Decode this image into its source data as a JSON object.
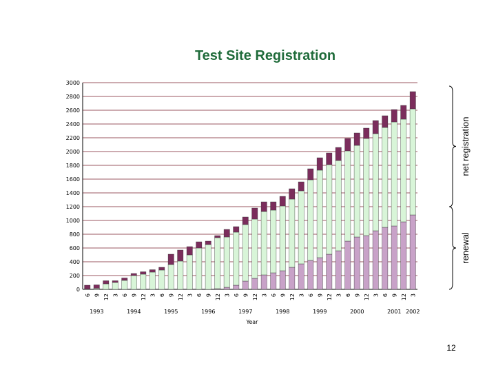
{
  "page": {
    "number": "12"
  },
  "chart_data": {
    "type": "bar",
    "stacked": true,
    "title": "Test Site Registration",
    "xlabel": "Year",
    "ylabel": "",
    "ylim": [
      0,
      3000
    ],
    "yticks": [
      0,
      200,
      400,
      600,
      800,
      1000,
      1200,
      1400,
      1600,
      1800,
      2000,
      2200,
      2400,
      2600,
      2800,
      3000
    ],
    "grid": true,
    "categories": [
      "6",
      "9",
      "12",
      "3",
      "6",
      "9",
      "12",
      "3",
      "6",
      "9",
      "12",
      "3",
      "6",
      "9",
      "12",
      "3",
      "6",
      "9",
      "12",
      "3",
      "6",
      "9",
      "12",
      "3",
      "6",
      "9",
      "12",
      "3",
      "6",
      "9",
      "12",
      "3",
      "6",
      "9",
      "12",
      "3"
    ],
    "year_labels": [
      {
        "label": "1993",
        "at": 1
      },
      {
        "label": "1994",
        "at": 5
      },
      {
        "label": "1995",
        "at": 9
      },
      {
        "label": "1996",
        "at": 13
      },
      {
        "label": "1997",
        "at": 17
      },
      {
        "label": "1998",
        "at": 21
      },
      {
        "label": "1999",
        "at": 25
      },
      {
        "label": "2000",
        "at": 29
      },
      {
        "label": "2001",
        "at": 33
      },
      {
        "label": "2002",
        "at": 35
      }
    ],
    "series": [
      {
        "color": "#c8a2c8",
        "values": [
          0,
          0,
          0,
          0,
          0,
          0,
          0,
          0,
          0,
          0,
          0,
          0,
          0,
          0,
          10,
          30,
          60,
          120,
          160,
          210,
          240,
          270,
          320,
          370,
          420,
          460,
          510,
          560,
          700,
          760,
          780,
          850,
          900,
          920,
          980,
          1080
        ]
      },
      {
        "color": "#d8f5d8",
        "values": [
          5,
          15,
          80,
          100,
          130,
          200,
          220,
          250,
          280,
          360,
          410,
          500,
          600,
          650,
          740,
          730,
          770,
          820,
          860,
          920,
          910,
          940,
          990,
          1060,
          1170,
          1270,
          1300,
          1310,
          1310,
          1330,
          1410,
          1410,
          1450,
          1510,
          1490,
          1540
        ]
      },
      {
        "color": "#7b2d5c",
        "values": [
          55,
          50,
          45,
          25,
          35,
          30,
          35,
          35,
          40,
          150,
          160,
          120,
          90,
          50,
          30,
          110,
          80,
          110,
          160,
          140,
          120,
          140,
          150,
          130,
          160,
          180,
          170,
          190,
          180,
          180,
          150,
          190,
          170,
          180,
          200,
          250
        ]
      }
    ],
    "annotations": [
      {
        "label": "net registration",
        "range": [
          1200,
          2950
        ]
      },
      {
        "label": "renewal",
        "range": [
          0,
          1200
        ]
      }
    ]
  }
}
